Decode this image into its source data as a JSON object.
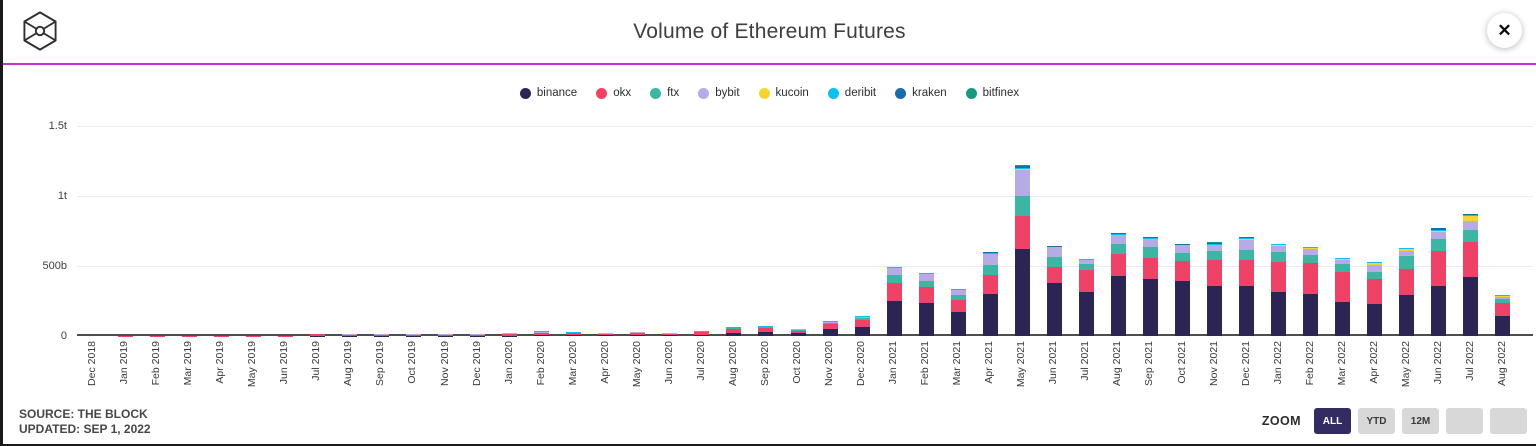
{
  "header": {
    "title": "Volume of Ethereum Futures",
    "logo_name": "the-block-logo",
    "close_glyph": "✕"
  },
  "footer": {
    "source": "SOURCE: THE BLOCK",
    "updated": "UPDATED: SEP 1, 2022"
  },
  "zoom_controls": {
    "label": "ZOOM",
    "buttons": [
      {
        "label": "ALL",
        "active": true
      },
      {
        "label": "YTD",
        "active": false
      },
      {
        "label": "12M",
        "active": false
      },
      {
        "label": "",
        "active": false
      },
      {
        "label": "",
        "active": false
      }
    ]
  },
  "colors": {
    "accent_line": "#c42fd1",
    "active_button": "#332c62",
    "axis_line": "#4d4d4d",
    "gridline": "#ececec"
  },
  "chart_data": {
    "type": "bar",
    "stacked": true,
    "title": "Volume of Ethereum Futures",
    "unit": "billions of USD",
    "ylim": [
      0,
      1500
    ],
    "grid": true,
    "legend_position": "top",
    "y_ticks": [
      {
        "label": "0",
        "value": 0
      },
      {
        "label": "500b",
        "value": 500
      },
      {
        "label": "1t",
        "value": 1000
      },
      {
        "label": "1.5t",
        "value": 1500
      }
    ],
    "categories": [
      "Dec 2018",
      "Jan 2019",
      "Feb 2019",
      "Mar 2019",
      "Apr 2019",
      "May 2019",
      "Jun 2019",
      "Jul 2019",
      "Aug 2019",
      "Sep 2019",
      "Oct 2019",
      "Nov 2019",
      "Dec 2019",
      "Jan 2020",
      "Feb 2020",
      "Mar 2020",
      "Apr 2020",
      "May 2020",
      "Jun 2020",
      "Jul 2020",
      "Aug 2020",
      "Sep 2020",
      "Oct 2020",
      "Nov 2020",
      "Dec 2020",
      "Jan 2021",
      "Feb 2021",
      "Mar 2021",
      "Apr 2021",
      "May 2021",
      "Jun 2021",
      "Jul 2021",
      "Aug 2021",
      "Sep 2021",
      "Oct 2021",
      "Nov 2021",
      "Dec 2021",
      "Jan 2022",
      "Feb 2022",
      "Mar 2022",
      "Apr 2022",
      "May 2022",
      "Jun 2022",
      "Jul 2022",
      "Aug 2022"
    ],
    "series": [
      {
        "name": "binance",
        "color": "#2b2553",
        "values": [
          0,
          0,
          0,
          0,
          0,
          0,
          0,
          2,
          2,
          2,
          2,
          2,
          2,
          3,
          6,
          6,
          4,
          6,
          5,
          10,
          22,
          27,
          20,
          50,
          64,
          250,
          235,
          175,
          300,
          620,
          380,
          315,
          430,
          410,
          395,
          360,
          355,
          315,
          300,
          245,
          230,
          290,
          360,
          420,
          140
        ]
      },
      {
        "name": "okx",
        "color": "#ee4266",
        "values": [
          0,
          1,
          1,
          1,
          1,
          1,
          2,
          15,
          10,
          8,
          8,
          8,
          6,
          12,
          18,
          16,
          14,
          18,
          13,
          20,
          34,
          35,
          21,
          38,
          50,
          130,
          115,
          85,
          135,
          240,
          115,
          155,
          155,
          150,
          140,
          180,
          185,
          215,
          225,
          215,
          180,
          190,
          250,
          250,
          95
        ]
      },
      {
        "name": "ftx",
        "color": "#3ab6a2",
        "values": [
          0,
          0,
          0,
          0,
          0,
          0,
          0,
          0,
          0,
          0,
          0,
          0,
          0,
          1,
          2,
          2,
          2,
          2,
          2,
          3,
          4,
          4,
          3,
          8,
          14,
          55,
          45,
          35,
          70,
          140,
          70,
          45,
          70,
          75,
          60,
          70,
          75,
          70,
          55,
          55,
          50,
          90,
          85,
          85,
          30
        ]
      },
      {
        "name": "bybit",
        "color": "#b6abe4",
        "values": [
          0,
          0,
          0,
          0,
          0,
          0,
          0,
          0,
          1,
          1,
          1,
          1,
          1,
          1,
          3,
          2,
          1,
          2,
          1,
          2,
          3,
          4,
          2,
          10,
          14,
          50,
          50,
          35,
          85,
          190,
          70,
          28,
          70,
          60,
          55,
          40,
          70,
          45,
          45,
          30,
          50,
          40,
          45,
          70,
          15
        ]
      },
      {
        "name": "kucoin",
        "color": "#f5d42e",
        "values": [
          0,
          0,
          0,
          0,
          0,
          0,
          0,
          0,
          0,
          0,
          0,
          0,
          0,
          0,
          0,
          0,
          0,
          0,
          0,
          0,
          0,
          0,
          0,
          0,
          0,
          0,
          0,
          0,
          0,
          3,
          0,
          0,
          0,
          0,
          0,
          0,
          5,
          5,
          5,
          5,
          10,
          12,
          15,
          30,
          8
        ]
      },
      {
        "name": "deribit",
        "color": "#0bbfee",
        "values": [
          0,
          0,
          0,
          0,
          0,
          0,
          0,
          0,
          0,
          0,
          0,
          0,
          0,
          0,
          3,
          2,
          0,
          0,
          0,
          1,
          1,
          1,
          0,
          1,
          1,
          5,
          5,
          3,
          5,
          8,
          5,
          3,
          8,
          8,
          5,
          5,
          10,
          10,
          8,
          8,
          8,
          8,
          5,
          15,
          3
        ]
      },
      {
        "name": "kraken",
        "color": "#1b6ca8",
        "values": [
          0,
          0,
          0,
          0,
          0,
          0,
          0,
          0,
          0,
          0,
          0,
          0,
          0,
          0,
          0,
          0,
          0,
          0,
          0,
          0,
          0,
          0,
          0,
          0,
          0,
          0,
          0,
          0,
          5,
          10,
          3,
          0,
          5,
          5,
          5,
          10,
          8,
          0,
          0,
          0,
          0,
          0,
          10,
          5,
          0
        ]
      },
      {
        "name": "bitfinex",
        "color": "#16997e",
        "values": [
          0,
          0,
          0,
          0,
          0,
          0,
          0,
          0,
          0,
          0,
          0,
          0,
          0,
          0,
          0,
          0,
          0,
          0,
          0,
          0,
          0,
          0,
          0,
          0,
          0,
          0,
          0,
          0,
          0,
          8,
          0,
          0,
          0,
          0,
          0,
          10,
          0,
          0,
          0,
          0,
          0,
          0,
          0,
          0,
          0
        ]
      }
    ]
  }
}
